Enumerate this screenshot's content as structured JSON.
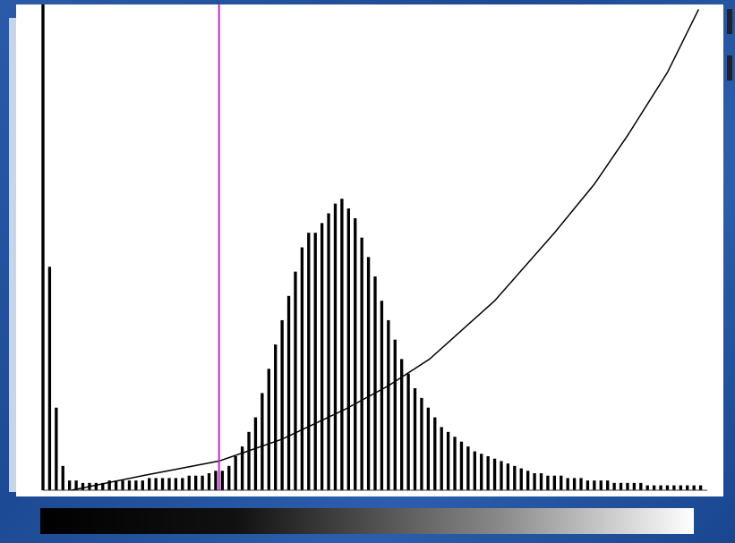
{
  "chart_data": {
    "type": "bar",
    "values": [
      100,
      46,
      17,
      5,
      2,
      2,
      1.5,
      1.5,
      1.5,
      1.5,
      2,
      2,
      2,
      2,
      2,
      2,
      2.5,
      2.5,
      2.5,
      2.5,
      2.5,
      2.5,
      3,
      3,
      3,
      3.5,
      4,
      4,
      5,
      7,
      9,
      12,
      15,
      20,
      25,
      30,
      35,
      40,
      45,
      50,
      53,
      53,
      55,
      57,
      59,
      60,
      58,
      56,
      52,
      48,
      44,
      39,
      35,
      31,
      27,
      24,
      21,
      19,
      17,
      15,
      13,
      12,
      11,
      10,
      9,
      8,
      7.5,
      7,
      6.5,
      6,
      5.5,
      5,
      4.5,
      4,
      3.5,
      3.5,
      3,
      3,
      3,
      2.5,
      2.5,
      2.5,
      2,
      2,
      2,
      2,
      1.5,
      1.5,
      1.5,
      1.5,
      1.5,
      1,
      1,
      1,
      1,
      1,
      1,
      1,
      1,
      1
    ],
    "color": "#000000",
    "xlim": [
      0,
      100
    ],
    "ylim": [
      0,
      100
    ],
    "curve": {
      "type": "line",
      "x": [
        4.3,
        15,
        26.5,
        36,
        45.4,
        52,
        58.2,
        68,
        77,
        83,
        88,
        94,
        98.7
      ],
      "values": [
        0,
        3,
        6,
        10.5,
        16.6,
        21.5,
        27,
        39,
        53,
        63,
        73,
        86,
        99
      ],
      "color": "#000000"
    },
    "marker": {
      "x": 26.5,
      "color": "#cc22cc"
    }
  }
}
